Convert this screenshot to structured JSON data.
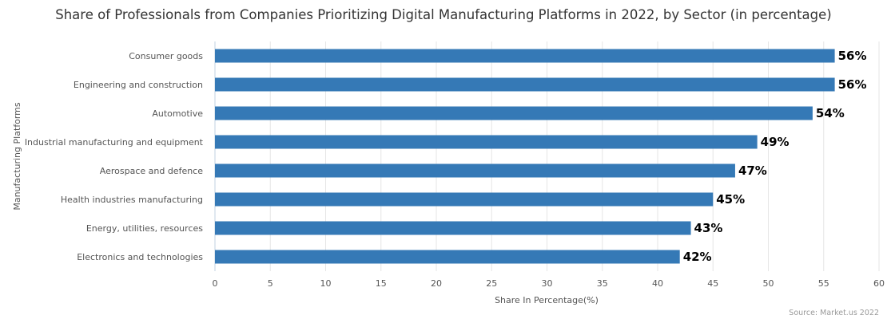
{
  "chart_data": {
    "type": "bar",
    "orientation": "horizontal",
    "title": "Share of Professionals from Companies Prioritizing Digital Manufacturing Platforms in 2022, by Sector (in percentage)",
    "xlabel": "Share In Percentage(%)",
    "ylabel": "Manufacturing Platforms",
    "categories": [
      "Consumer goods",
      "Engineering and construction",
      "Automotive",
      "Industrial manufacturing and equipment",
      "Aerospace and defence",
      "Health industries manufacturing",
      "Energy, utilities, resources",
      "Electronics and technologies"
    ],
    "values": [
      56,
      56,
      54,
      49,
      47,
      45,
      43,
      42
    ],
    "data_labels": [
      "56%",
      "56%",
      "54%",
      "49%",
      "47%",
      "45%",
      "43%",
      "42%"
    ],
    "xlim": [
      0,
      60
    ],
    "xticks": [
      "0",
      "5",
      "10",
      "15",
      "20",
      "25",
      "30",
      "35",
      "40",
      "45",
      "50",
      "55",
      "60"
    ],
    "grid": true,
    "legend": "none",
    "bar_color": "#3579b6",
    "source": "Source: Market.us 2022"
  }
}
